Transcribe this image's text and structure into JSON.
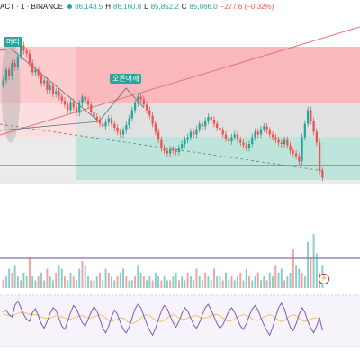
{
  "header": {
    "symbol_label": "ACT · 1 · BINANCE",
    "open_label": "86,143.5",
    "high_label": "86,160.8",
    "low_label": "85,852.2",
    "close_label": "85,866.0",
    "change_label": "−277.6 (−0.32%)",
    "o_prefix": "",
    "h_prefix": "H",
    "l_prefix": "L",
    "c_prefix": "C"
  },
  "annotations": {
    "head_label": "머리",
    "right_shoulder_label": "오른어깨"
  },
  "colors": {
    "up": "#26a69a",
    "down": "#ef5350",
    "zone_red": "#f7a1a6",
    "zone_green": "#a8dccf",
    "zone_gray": "#c9c9c9",
    "rsi_line": "#7e57c2",
    "rsi_ma": "#f0c36b",
    "hline": "#5b4bb3"
  },
  "icons": {
    "alert_icon": "lightning-icon"
  },
  "chart_data": [
    {
      "type": "candlestick",
      "title": "",
      "closes": [
        0.62,
        0.7,
        0.65,
        0.75,
        0.72,
        0.8,
        0.88,
        0.84,
        0.82,
        0.75,
        0.68,
        0.7,
        0.66,
        0.6,
        0.62,
        0.55,
        0.58,
        0.52,
        0.54,
        0.5,
        0.47,
        0.44,
        0.4,
        0.46,
        0.42,
        0.38,
        0.45,
        0.5,
        0.47,
        0.44,
        0.39,
        0.35,
        0.33,
        0.3,
        0.28,
        0.31,
        0.34,
        0.3,
        0.27,
        0.24,
        0.22,
        0.25,
        0.29,
        0.34,
        0.4,
        0.45,
        0.5,
        0.48,
        0.44,
        0.4,
        0.36,
        0.3,
        0.24,
        0.18,
        0.12,
        0.1,
        0.08,
        0.11,
        0.1,
        0.09,
        0.12,
        0.15,
        0.18,
        0.2,
        0.24,
        0.22,
        0.26,
        0.3,
        0.28,
        0.32,
        0.35,
        0.33,
        0.3,
        0.27,
        0.25,
        0.22,
        0.19,
        0.17,
        0.2,
        0.22,
        0.18,
        0.16,
        0.14,
        0.12,
        0.15,
        0.2,
        0.24,
        0.22,
        0.26,
        0.28,
        0.25,
        0.22,
        0.2,
        0.18,
        0.16,
        0.15,
        0.18,
        0.14,
        0.1,
        0.08,
        0.06,
        0.02,
        0.2,
        0.3,
        0.4,
        0.32,
        0.24,
        0.16,
        -0.05,
        -0.1
      ]
    },
    {
      "type": "bar",
      "title": "",
      "values": [
        2,
        3,
        5,
        4,
        6,
        3,
        2,
        4,
        3,
        8,
        3,
        2,
        3,
        4,
        2,
        5,
        3,
        2,
        4,
        6,
        5,
        3,
        2,
        4,
        3,
        2,
        5,
        7,
        6,
        3,
        2,
        2,
        3,
        4,
        2,
        5,
        4,
        3,
        2,
        3,
        4,
        5,
        3,
        2,
        2,
        3,
        6,
        4,
        3,
        2,
        3,
        2,
        4,
        3,
        2,
        3,
        2,
        2,
        3,
        4,
        2,
        3,
        2,
        4,
        3,
        2,
        5,
        3,
        2,
        4,
        3,
        2,
        5,
        3,
        3,
        2,
        4,
        2,
        3,
        2,
        3,
        4,
        2,
        5,
        3,
        2,
        3,
        4,
        2,
        3,
        2,
        4,
        3,
        6,
        4,
        5,
        2,
        3,
        4,
        10,
        6,
        5,
        4,
        3,
        12,
        8,
        14,
        9,
        4,
        6
      ]
    },
    {
      "type": "line",
      "title": "",
      "series": [
        {
          "values": [
            60,
            62,
            58,
            56,
            66,
            70,
            64,
            58,
            54,
            52,
            60,
            63,
            57,
            50,
            46,
            52,
            59,
            64,
            62,
            55,
            48,
            45,
            52,
            60,
            66,
            63,
            57,
            51,
            48,
            54,
            60,
            65,
            61,
            54,
            46,
            42,
            48,
            56,
            62,
            58,
            51,
            45,
            42,
            47,
            55,
            63,
            67,
            64,
            57,
            50,
            44,
            40,
            46,
            54,
            61,
            66,
            63,
            57,
            51,
            47,
            52,
            59,
            64,
            61,
            55,
            49,
            46,
            51,
            58,
            64,
            67,
            62,
            56,
            50,
            46,
            49,
            55,
            61,
            64,
            60,
            54,
            48,
            45,
            50,
            57,
            63,
            66,
            62,
            55,
            49,
            44,
            40,
            47,
            56,
            64,
            68,
            63,
            54,
            47,
            44,
            50,
            58,
            64,
            60,
            52,
            46,
            42,
            48,
            55,
            44
          ]
        },
        {
          "values": [
            58,
            58,
            57,
            57,
            58,
            59,
            60,
            60,
            59,
            58,
            58,
            58,
            57,
            56,
            55,
            55,
            55,
            56,
            57,
            57,
            56,
            55,
            54,
            54,
            55,
            56,
            57,
            57,
            56,
            55,
            55,
            56,
            57,
            58,
            57,
            55,
            53,
            52,
            53,
            54,
            55,
            55,
            53,
            51,
            50,
            51,
            53,
            55,
            57,
            58,
            57,
            55,
            53,
            52,
            52,
            53,
            55,
            57,
            58,
            57,
            55,
            54,
            54,
            55,
            56,
            57,
            57,
            56,
            55,
            55,
            56,
            57,
            58,
            58,
            57,
            55,
            53,
            52,
            53,
            54,
            56,
            57,
            58,
            57,
            56,
            54,
            53,
            53,
            54,
            56,
            57,
            58,
            57,
            55,
            53,
            52,
            53,
            55,
            57,
            58,
            57,
            55,
            53,
            52,
            53,
            54,
            55,
            55,
            54,
            53
          ]
        }
      ]
    }
  ]
}
